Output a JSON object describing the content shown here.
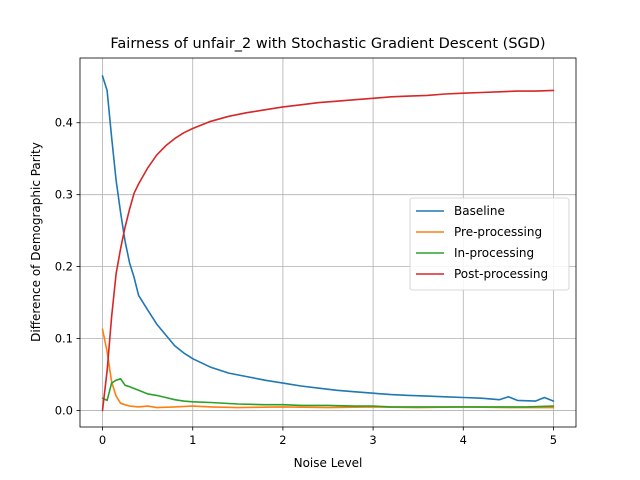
{
  "chart_data": {
    "type": "line",
    "title": "Fairness of unfair_2 with Stochastic Gradient Descent (SGD)",
    "xlabel": "Noise Level",
    "ylabel": "Difference of Demographic Parity",
    "xlim": [
      -0.25,
      5.25
    ],
    "ylim": [
      -0.023,
      0.49
    ],
    "xticks": [
      0,
      1,
      2,
      3,
      4,
      5
    ],
    "xtick_labels": [
      "0",
      "1",
      "2",
      "3",
      "4",
      "5"
    ],
    "yticks": [
      0.0,
      0.1,
      0.2,
      0.3,
      0.4
    ],
    "ytick_labels": [
      "0.0",
      "0.1",
      "0.2",
      "0.3",
      "0.4"
    ],
    "grid": true,
    "legend": "center-right",
    "series": [
      {
        "name": "Baseline",
        "color": "#1f77b4",
        "x": [
          0,
          0.05,
          0.1,
          0.15,
          0.2,
          0.25,
          0.3,
          0.35,
          0.4,
          0.5,
          0.6,
          0.7,
          0.8,
          0.9,
          1.0,
          1.2,
          1.4,
          1.6,
          1.8,
          2.0,
          2.2,
          2.4,
          2.6,
          2.8,
          3.0,
          3.2,
          3.4,
          3.6,
          3.8,
          4.0,
          4.2,
          4.4,
          4.5,
          4.6,
          4.8,
          4.9,
          5.0
        ],
        "y": [
          0.465,
          0.445,
          0.38,
          0.32,
          0.275,
          0.235,
          0.205,
          0.185,
          0.16,
          0.14,
          0.12,
          0.105,
          0.09,
          0.08,
          0.072,
          0.06,
          0.052,
          0.047,
          0.042,
          0.038,
          0.034,
          0.031,
          0.028,
          0.026,
          0.024,
          0.022,
          0.021,
          0.02,
          0.019,
          0.018,
          0.017,
          0.015,
          0.019,
          0.014,
          0.013,
          0.018,
          0.013
        ]
      },
      {
        "name": "Pre-processing",
        "color": "#ff7f0e",
        "x": [
          0,
          0.05,
          0.1,
          0.15,
          0.2,
          0.3,
          0.4,
          0.5,
          0.6,
          0.8,
          1.0,
          1.2,
          1.5,
          2.0,
          2.5,
          3.0,
          3.5,
          4.0,
          4.5,
          5.0
        ],
        "y": [
          0.113,
          0.082,
          0.04,
          0.02,
          0.01,
          0.006,
          0.005,
          0.006,
          0.004,
          0.005,
          0.006,
          0.005,
          0.004,
          0.005,
          0.004,
          0.005,
          0.004,
          0.005,
          0.004,
          0.004
        ]
      },
      {
        "name": "In-processing",
        "color": "#2ca02c",
        "x": [
          0,
          0.05,
          0.1,
          0.15,
          0.2,
          0.25,
          0.3,
          0.4,
          0.5,
          0.6,
          0.7,
          0.8,
          0.9,
          1.0,
          1.2,
          1.5,
          1.8,
          2.0,
          2.2,
          2.5,
          2.8,
          3.0,
          3.2,
          3.5,
          3.8,
          4.0,
          4.3,
          4.5,
          4.7,
          5.0
        ],
        "y": [
          0.017,
          0.014,
          0.038,
          0.042,
          0.044,
          0.035,
          0.033,
          0.028,
          0.023,
          0.021,
          0.018,
          0.015,
          0.013,
          0.012,
          0.011,
          0.009,
          0.008,
          0.008,
          0.007,
          0.007,
          0.006,
          0.006,
          0.005,
          0.005,
          0.005,
          0.005,
          0.005,
          0.005,
          0.005,
          0.006
        ]
      },
      {
        "name": "Post-processing",
        "color": "#d62728",
        "x": [
          0,
          0.05,
          0.1,
          0.15,
          0.2,
          0.25,
          0.3,
          0.35,
          0.4,
          0.5,
          0.6,
          0.7,
          0.8,
          0.9,
          1.0,
          1.2,
          1.4,
          1.6,
          1.8,
          2.0,
          2.2,
          2.4,
          2.6,
          2.8,
          3.0,
          3.2,
          3.4,
          3.6,
          3.8,
          4.0,
          4.2,
          4.4,
          4.6,
          4.8,
          5.0
        ],
        "y": [
          0.0,
          0.055,
          0.13,
          0.19,
          0.225,
          0.255,
          0.28,
          0.302,
          0.315,
          0.337,
          0.355,
          0.368,
          0.378,
          0.386,
          0.392,
          0.402,
          0.409,
          0.414,
          0.418,
          0.422,
          0.425,
          0.428,
          0.43,
          0.432,
          0.434,
          0.436,
          0.437,
          0.438,
          0.44,
          0.441,
          0.442,
          0.443,
          0.444,
          0.444,
          0.445
        ]
      }
    ]
  }
}
